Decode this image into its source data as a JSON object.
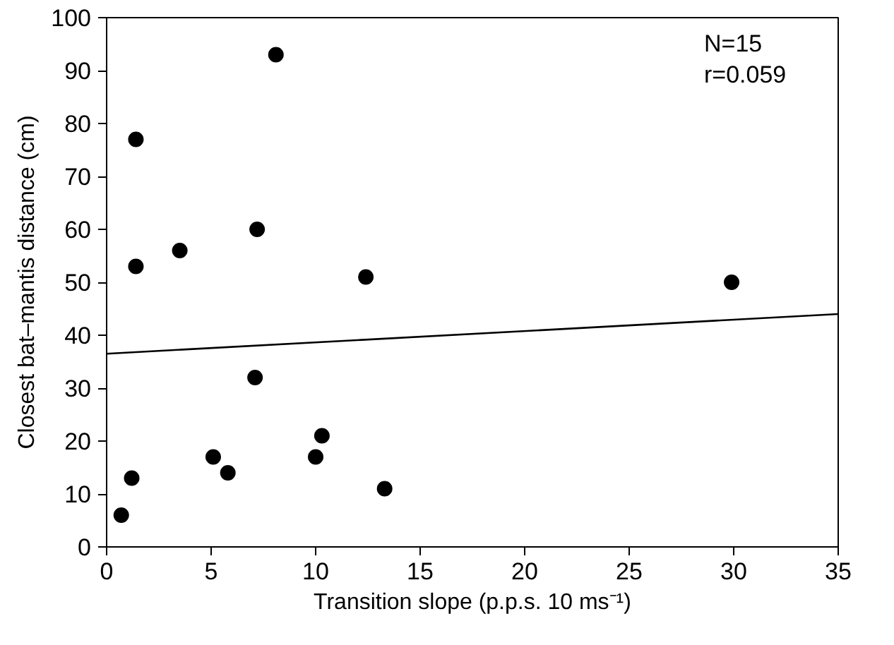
{
  "chart_data": {
    "type": "scatter",
    "xlabel": "Transition slope (p.p.s. 10 ms⁻¹)",
    "ylabel": "Closest bat–mantis distance (cm)",
    "xlim": [
      0,
      35
    ],
    "ylim": [
      0,
      100
    ],
    "xticks": [
      0,
      5,
      10,
      15,
      20,
      25,
      30,
      35
    ],
    "yticks": [
      0,
      10,
      20,
      30,
      40,
      50,
      60,
      70,
      80,
      90,
      100
    ],
    "grid": false,
    "annotations": [
      "N=15",
      "r=0.059"
    ],
    "series": [
      {
        "marker": "circle",
        "color": "#000000",
        "x": [
          0.7,
          1.2,
          1.4,
          1.4,
          3.5,
          5.1,
          5.8,
          7.1,
          7.2,
          8.1,
          10.0,
          10.3,
          12.4,
          13.3,
          29.9
        ],
        "values": [
          6,
          13,
          77,
          53,
          56,
          17,
          14,
          32,
          60,
          93,
          17,
          21,
          51,
          11,
          50
        ]
      },
      {
        "type": "line",
        "color": "#000000",
        "x": [
          0,
          35
        ],
        "values": [
          36.5,
          44
        ]
      }
    ]
  }
}
